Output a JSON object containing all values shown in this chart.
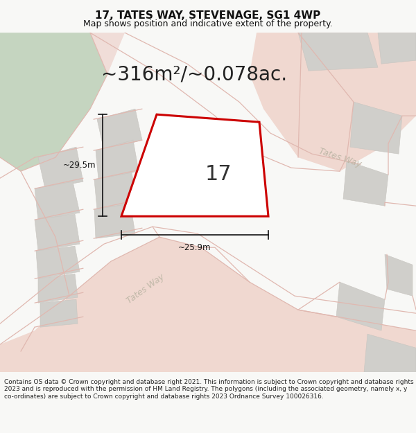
{
  "title": "17, TATES WAY, STEVENAGE, SG1 4WP",
  "subtitle": "Map shows position and indicative extent of the property.",
  "area_text": "~316m²/~0.078ac.",
  "dim_vertical": "~29.5m",
  "dim_horizontal": "~25.9m",
  "label_number": "17",
  "road_label_1": "Tates Way",
  "road_label_2": "Tates Way",
  "footer": "Contains OS data © Crown copyright and database right 2021. This information is subject to Crown copyright and database rights 2023 and is reproduced with the permission of HM Land Registry. The polygons (including the associated geometry, namely x, y co-ordinates) are subject to Crown copyright and database rights 2023 Ordnance Survey 100026316.",
  "map_bg": "#eeebe6",
  "green_color": "#c5d5c0",
  "pink_road_color": "#f0d8d0",
  "gray_bldg_color": "#d0cfcb",
  "road_line_color": "#e0b8b0",
  "plot_color": "#cc0000",
  "plot_fill": "#ffffff",
  "arrow_color": "#111111",
  "title_fontsize": 11,
  "subtitle_fontsize": 9,
  "area_fontsize": 20,
  "number_fontsize": 22,
  "footer_fontsize": 6.5,
  "dim_fontsize": 8.5,
  "road_fontsize": 9
}
